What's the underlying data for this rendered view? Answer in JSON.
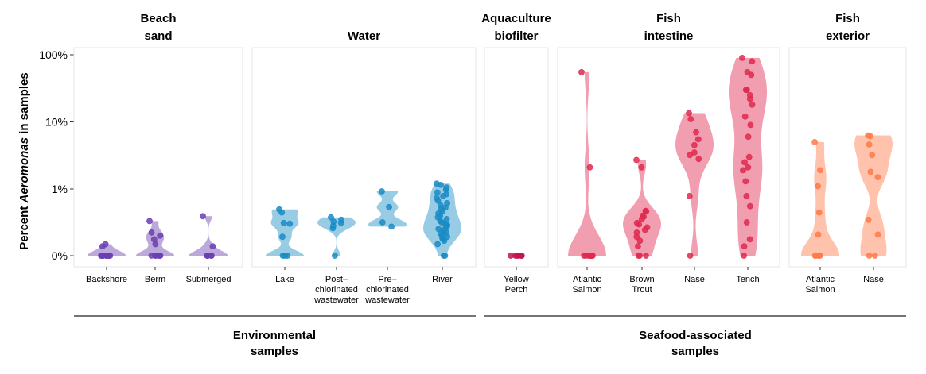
{
  "chart_data": {
    "type": "scatter",
    "subtype": "faceted violin + jittered points",
    "ylabel": {
      "prefix": "Percent ",
      "italic": "Aeromonas",
      "suffix": " in samples"
    },
    "y_scale": "pseudo-log",
    "y_ticks": [
      {
        "value": 0,
        "label": "0%"
      },
      {
        "value": 1,
        "label": "1%"
      },
      {
        "value": 10,
        "label": "10%"
      },
      {
        "value": 100,
        "label": "100%"
      }
    ],
    "ylim": [
      0,
      100
    ],
    "grid": false,
    "groups": [
      {
        "label": [
          "Environmental",
          "samples"
        ]
      },
      {
        "label": [
          "Seafood-associated",
          "samples"
        ]
      }
    ],
    "facets": [
      {
        "title": [
          "Beach",
          "sand"
        ],
        "color": "#6A3FB0",
        "categories": [
          {
            "label": [
              "Backshore"
            ],
            "values": [
              0,
              0,
              0,
              0,
              0,
              0,
              0,
              0,
              0,
              0,
              0,
              0.02,
              0.03
            ]
          },
          {
            "label": [
              "Berm"
            ],
            "values": [
              0.27,
              0.12,
              0.09,
              0.06,
              0.03,
              0,
              0,
              0,
              0,
              0,
              0
            ]
          },
          {
            "label": [
              "Submerged"
            ],
            "values": [
              0.35,
              0.02,
              0,
              0,
              0,
              0,
              0
            ]
          }
        ]
      },
      {
        "title": [
          "Water"
        ],
        "color": "#1A8CC4",
        "categories": [
          {
            "label": [
              "Lake"
            ],
            "values": [
              0.48,
              0.42,
              0.24,
              0.23,
              0.08,
              0,
              0,
              0
            ]
          },
          {
            "label": [
              "Post–",
              "chlorinated",
              "wastewater"
            ],
            "values": [
              0.33,
              0.29,
              0.26,
              0.24,
              0.2,
              0.17,
              0
            ]
          },
          {
            "label": [
              "Pre–",
              "chlorinated",
              "wastewater"
            ],
            "values": [
              0.93,
              0.53,
              0.25,
              0.19
            ]
          },
          {
            "label": [
              "River"
            ],
            "values": [
              1.2,
              1.15,
              1.05,
              0.98,
              0.9,
              0.85,
              0.8,
              0.75,
              0.68,
              0.62,
              0.57,
              0.52,
              0.48,
              0.44,
              0.4,
              0.36,
              0.33,
              0.3,
              0.27,
              0.25,
              0.23,
              0.21,
              0.2,
              0.18,
              0.16,
              0.15,
              0.13,
              0.12,
              0.11,
              0.1,
              0.08,
              0.07,
              0.06,
              0.05,
              0.03,
              0,
              0
            ]
          }
        ]
      },
      {
        "title": [
          "Aquaculture",
          "biofilter"
        ],
        "color": "#C2154A",
        "categories": [
          {
            "label": [
              "Yellow",
              "Perch"
            ],
            "values": [
              0,
              0,
              0,
              0,
              0,
              0
            ]
          }
        ]
      },
      {
        "title": [
          "Fish",
          "intestine"
        ],
        "color": "#E0294F",
        "categories": [
          {
            "label": [
              "Atlantic",
              "Salmon"
            ],
            "values": [
              55,
              2.1,
              0,
              0,
              0,
              0,
              0,
              0,
              0,
              0
            ]
          },
          {
            "label": [
              "Brown",
              "Trout"
            ],
            "values": [
              2.7,
              2.1,
              0.45,
              0.44,
              0.36,
              0.34,
              0.3,
              0.24,
              0.22,
              0.18,
              0.15,
              0.12,
              0.08,
              0.05,
              0.02,
              0,
              0,
              0
            ]
          },
          {
            "label": [
              "Nase"
            ],
            "values": [
              13.5,
              11,
              7,
              5.5,
              4.5,
              3.5,
              3.2,
              2.8,
              0.8,
              0
            ]
          },
          {
            "label": [
              "Tench"
            ],
            "values": [
              90,
              80,
              55,
              50,
              30,
              30,
              25,
              22,
              18,
              12,
              9,
              6,
              3,
              2.5,
              2.1,
              1.9,
              1.3,
              0.8,
              0.55,
              0.25,
              0.06,
              0.02,
              0
            ]
          }
        ]
      },
      {
        "title": [
          "Fish",
          "exterior"
        ],
        "color": "#FF7A4A",
        "categories": [
          {
            "label": [
              "Atlantic",
              "Salmon"
            ],
            "values": [
              5,
              1.9,
              1.1,
              0.42,
              0.1,
              0,
              0,
              0,
              0,
              0
            ]
          },
          {
            "label": [
              "Nase"
            ],
            "values": [
              6.3,
              6.1,
              4.6,
              3.2,
              1.8,
              1.5,
              0.29,
              0.1,
              0,
              0
            ]
          }
        ]
      }
    ]
  }
}
